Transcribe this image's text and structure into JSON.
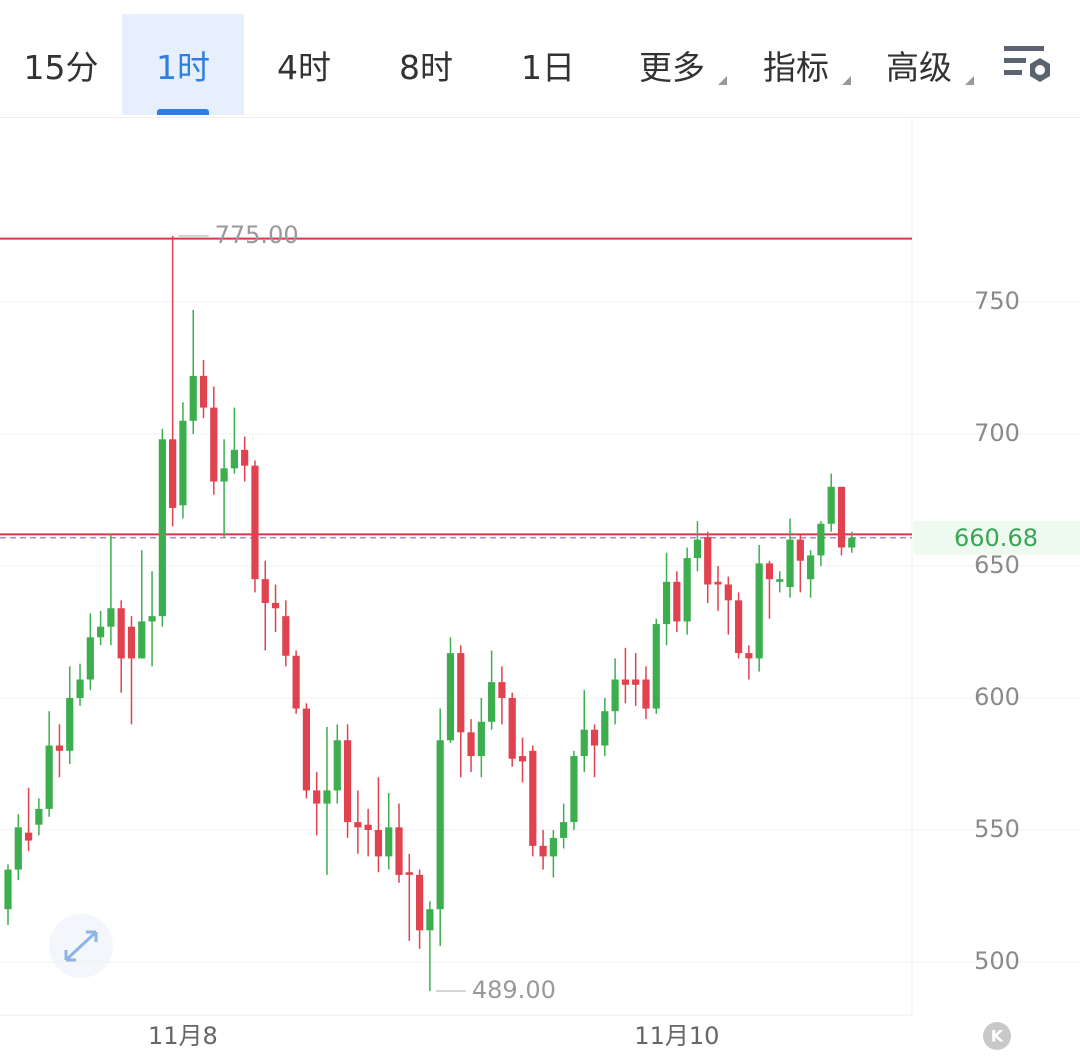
{
  "toolbar": {
    "tabs": [
      {
        "label": "15分"
      },
      {
        "label": "1时"
      },
      {
        "label": "4时"
      },
      {
        "label": "8时"
      },
      {
        "label": "1日"
      },
      {
        "label": "更多",
        "dropdown": true
      },
      {
        "label": "指标",
        "dropdown": true
      },
      {
        "label": "高级",
        "dropdown": true
      }
    ],
    "active": 1
  },
  "chart_data": {
    "type": "candlestick",
    "categories": [
      null,
      null,
      null,
      null,
      null,
      null,
      null,
      null,
      null,
      null,
      null,
      null,
      null,
      null,
      null,
      null,
      null,
      "11月8",
      null,
      null,
      null,
      null,
      null,
      null,
      null,
      null,
      null,
      null,
      null,
      null,
      null,
      null,
      null,
      null,
      null,
      null,
      null,
      null,
      null,
      null,
      null,
      null,
      null,
      null,
      null,
      null,
      null,
      null,
      null,
      null,
      null,
      null,
      null,
      null,
      null,
      null,
      null,
      null,
      null,
      null,
      null,
      null,
      null,
      null,
      null,
      "11月10",
      null,
      null,
      null,
      null,
      null,
      null,
      null,
      null,
      null,
      null,
      null,
      null,
      null,
      null,
      null,
      null,
      null
    ],
    "open": [
      520,
      535,
      549,
      552,
      558,
      582,
      580,
      600,
      607,
      623,
      627,
      634,
      627,
      615,
      629,
      631,
      698,
      673,
      705,
      722,
      710,
      682,
      687,
      694,
      688,
      645,
      636,
      631,
      616,
      596,
      565,
      560,
      565,
      584,
      553,
      552,
      550,
      540,
      551,
      534,
      533,
      512,
      520,
      584,
      617,
      587,
      578,
      591,
      606,
      600,
      578,
      580,
      544,
      540,
      547,
      553,
      578,
      588,
      582,
      595,
      607,
      607,
      607,
      596,
      628,
      644,
      629,
      653,
      661,
      644,
      643,
      637,
      617,
      615,
      651,
      644,
      642,
      660,
      645,
      654,
      666,
      680,
      657
    ],
    "high": [
      537,
      556,
      566,
      562,
      595,
      590,
      612,
      613,
      632,
      633,
      662,
      637,
      631,
      656,
      648,
      702,
      775,
      712,
      747,
      728,
      718,
      698,
      710,
      699,
      690,
      652,
      643,
      637,
      618,
      598,
      572,
      589,
      590,
      590,
      565,
      558,
      570,
      564,
      560,
      541,
      535,
      523,
      596,
      623,
      620,
      592,
      600,
      618,
      612,
      602,
      585,
      582,
      550,
      550,
      560,
      580,
      603,
      590,
      600,
      615,
      619,
      617,
      612,
      630,
      655,
      648,
      657,
      667,
      663,
      650,
      646,
      640,
      620,
      658,
      652,
      648,
      668,
      662,
      656,
      667,
      685,
      680,
      663
    ],
    "low": [
      514,
      531,
      542,
      548,
      555,
      570,
      575,
      597,
      603,
      620,
      620,
      602,
      590,
      615,
      612,
      627,
      665,
      668,
      700,
      706,
      677,
      661,
      685,
      682,
      640,
      618,
      625,
      612,
      594,
      562,
      548,
      533,
      560,
      547,
      541,
      540,
      534,
      535,
      530,
      508,
      505,
      489,
      506,
      583,
      570,
      572,
      570,
      588,
      590,
      574,
      568,
      540,
      535,
      532,
      543,
      550,
      572,
      570,
      578,
      590,
      598,
      597,
      592,
      594,
      620,
      625,
      624,
      648,
      636,
      633,
      624,
      615,
      607,
      610,
      630,
      640,
      638,
      640,
      638,
      650,
      663,
      654,
      655
    ],
    "close": [
      535,
      551,
      546,
      558,
      582,
      580,
      600,
      607,
      623,
      627,
      634,
      615,
      615,
      629,
      631,
      698,
      672,
      705,
      722,
      710,
      682,
      687,
      694,
      688,
      645,
      636,
      634,
      616,
      596,
      565,
      560,
      565,
      584,
      553,
      551,
      550,
      540,
      551,
      533,
      533,
      512,
      520,
      584,
      617,
      587,
      578,
      591,
      606,
      600,
      577,
      576,
      544,
      540,
      547,
      553,
      578,
      588,
      582,
      595,
      607,
      605,
      605,
      596,
      628,
      644,
      629,
      653,
      660,
      643,
      643,
      637,
      617,
      615,
      651,
      645,
      645,
      660,
      652,
      654,
      666,
      680,
      657,
      660.68
    ],
    "up_color": "#3dae4e",
    "down_color": "#e0424f",
    "ylim": [
      480,
      820
    ],
    "yticks": [
      500,
      550,
      600,
      650,
      700,
      750
    ],
    "grid": true,
    "hlines": [
      {
        "value": 774,
        "color": "#d8374a"
      },
      {
        "value": 662,
        "color": "#d8374a"
      }
    ],
    "last_price": {
      "value": 660.68,
      "color": "#3aa655"
    },
    "annotations": [
      {
        "value": 775,
        "label": "775.00"
      },
      {
        "value": 489,
        "label": "489.00"
      }
    ]
  },
  "corner_button": "K"
}
